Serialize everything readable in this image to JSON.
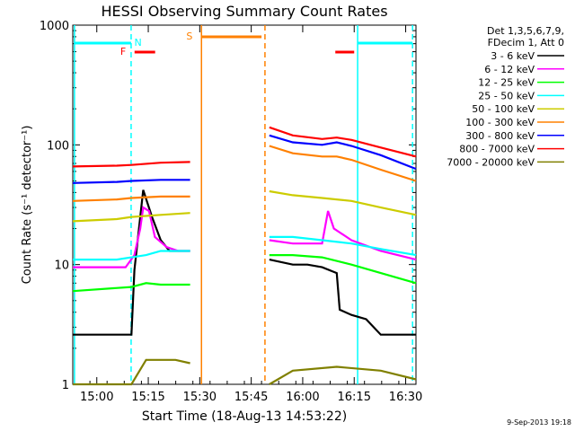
{
  "chart_data": {
    "type": "line",
    "title": "HESSI Observing Summary Count Rates",
    "xlabel": "Start Time (18-Aug-13 14:53:22)",
    "ylabel": "Count Rate (s⁻¹ detector⁻¹)",
    "y_scale": "log",
    "ylim": [
      1,
      1000
    ],
    "xlim_minutes_after_1453": [
      0,
      100
    ],
    "xticks": [
      "15:00",
      "15:15",
      "15:30",
      "15:45",
      "16:00",
      "16:15",
      "16:30"
    ],
    "yticks": [
      "1",
      "10",
      "100",
      "1000"
    ],
    "legend_header": [
      "Det 1,3,5,6,7,9,",
      "FDecim 1, Att 0"
    ],
    "legend_position": "right",
    "date_stamp": "9-Sep-2013 19:18",
    "series": [
      {
        "name": "3 - 6 keV",
        "color": "#000000",
        "points": [
          [
            0,
            2.6
          ],
          [
            20,
            2.6
          ],
          [
            21,
            9
          ],
          [
            23,
            25
          ],
          [
            24,
            42
          ],
          [
            27,
            25
          ],
          [
            30,
            16
          ],
          [
            33,
            13
          ],
          [
            36,
            13
          ],
          [
            40,
            13
          ]
        ],
        "points2": [
          [
            67,
            11
          ],
          [
            75,
            10
          ],
          [
            80,
            10
          ],
          [
            85,
            9.5
          ],
          [
            90,
            8.5
          ],
          [
            91,
            4.2
          ],
          [
            95,
            3.8
          ],
          [
            100,
            3.5
          ],
          [
            105,
            2.6
          ],
          [
            117,
            2.6
          ]
        ]
      },
      {
        "name": "6 - 12 keV",
        "color": "#ff00ff",
        "points": [
          [
            0,
            9.5
          ],
          [
            18,
            9.5
          ],
          [
            21,
            12
          ],
          [
            23,
            20
          ],
          [
            24,
            30
          ],
          [
            26,
            28
          ],
          [
            28,
            17
          ],
          [
            32,
            14
          ],
          [
            36,
            13
          ],
          [
            40,
            13
          ]
        ],
        "points2": [
          [
            67,
            16
          ],
          [
            75,
            15
          ],
          [
            85,
            15
          ],
          [
            87,
            28
          ],
          [
            89,
            20
          ],
          [
            95,
            16
          ],
          [
            105,
            13
          ],
          [
            117,
            11
          ]
        ]
      },
      {
        "name": "12 - 25 keV",
        "color": "#00ff00",
        "points": [
          [
            0,
            6
          ],
          [
            20,
            6.5
          ],
          [
            25,
            7
          ],
          [
            30,
            6.8
          ],
          [
            40,
            6.8
          ]
        ],
        "points2": [
          [
            67,
            12
          ],
          [
            75,
            12
          ],
          [
            85,
            11.5
          ],
          [
            95,
            10
          ],
          [
            105,
            8.5
          ],
          [
            117,
            7
          ]
        ]
      },
      {
        "name": "25 - 50 keV",
        "color": "#00ffff",
        "points": [
          [
            0,
            11
          ],
          [
            15,
            11
          ],
          [
            20,
            11.5
          ],
          [
            25,
            12
          ],
          [
            30,
            13
          ],
          [
            40,
            13
          ]
        ],
        "points2": [
          [
            67,
            17
          ],
          [
            75,
            17
          ],
          [
            85,
            16
          ],
          [
            95,
            15
          ],
          [
            105,
            13.5
          ],
          [
            117,
            12
          ]
        ]
      },
      {
        "name": "50 - 100 keV",
        "color": "#cccc00",
        "points": [
          [
            0,
            23
          ],
          [
            15,
            24
          ],
          [
            20,
            25
          ],
          [
            30,
            26
          ],
          [
            40,
            27
          ]
        ],
        "points2": [
          [
            67,
            41
          ],
          [
            75,
            38
          ],
          [
            85,
            36
          ],
          [
            95,
            34
          ],
          [
            105,
            30
          ],
          [
            117,
            26
          ]
        ]
      },
      {
        "name": "100 - 300 keV",
        "color": "#ff8000",
        "points": [
          [
            0,
            34
          ],
          [
            15,
            35
          ],
          [
            20,
            36
          ],
          [
            30,
            37
          ],
          [
            40,
            37
          ]
        ],
        "points2": [
          [
            67,
            98
          ],
          [
            75,
            85
          ],
          [
            85,
            80
          ],
          [
            90,
            80
          ],
          [
            95,
            75
          ],
          [
            105,
            62
          ],
          [
            117,
            50
          ]
        ]
      },
      {
        "name": "300 - 800 keV",
        "color": "#0000ff",
        "points": [
          [
            0,
            48
          ],
          [
            15,
            49
          ],
          [
            20,
            50
          ],
          [
            30,
            51
          ],
          [
            40,
            51
          ]
        ],
        "points2": [
          [
            67,
            120
          ],
          [
            75,
            105
          ],
          [
            85,
            100
          ],
          [
            90,
            105
          ],
          [
            95,
            98
          ],
          [
            105,
            82
          ],
          [
            117,
            63
          ]
        ]
      },
      {
        "name": "800 - 7000 keV",
        "color": "#ff0000",
        "points": [
          [
            0,
            66
          ],
          [
            15,
            67
          ],
          [
            20,
            68
          ],
          [
            30,
            71
          ],
          [
            40,
            72
          ]
        ],
        "points2": [
          [
            67,
            140
          ],
          [
            75,
            120
          ],
          [
            85,
            112
          ],
          [
            90,
            115
          ],
          [
            95,
            110
          ],
          [
            105,
            95
          ],
          [
            117,
            80
          ]
        ]
      },
      {
        "name": "7000 - 20000 keV",
        "color": "#808000",
        "points": [
          [
            0,
            1
          ],
          [
            20,
            1
          ],
          [
            25,
            1.6
          ],
          [
            35,
            1.6
          ],
          [
            40,
            1.5
          ]
        ],
        "points2": [
          [
            67,
            1
          ],
          [
            75,
            1.3
          ],
          [
            90,
            1.4
          ],
          [
            105,
            1.3
          ],
          [
            117,
            1.1
          ]
        ]
      }
    ],
    "annotations": [
      {
        "label": "N",
        "color": "#00ffff",
        "note": "night"
      },
      {
        "label": "F",
        "color": "#ff0000",
        "note": "flare flag"
      },
      {
        "label": "S",
        "color": "#ff8000",
        "note": "SAA"
      }
    ]
  }
}
